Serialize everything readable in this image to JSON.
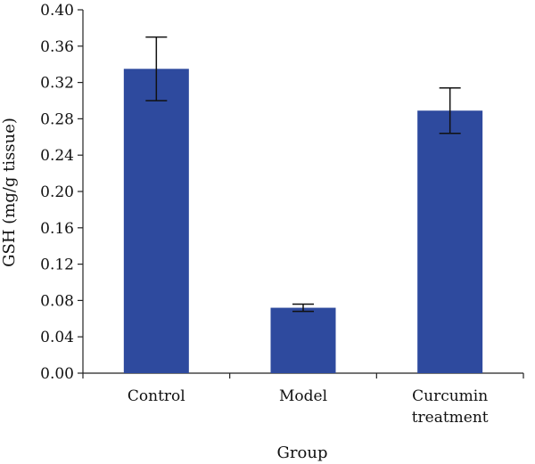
{
  "chart_data": {
    "type": "bar",
    "title": "",
    "xlabel": "Group",
    "ylabel": "GSH (mg/g tissue)",
    "ylim": [
      0,
      0.4
    ],
    "yticks": [
      "0.00",
      "0.04",
      "0.08",
      "0.12",
      "0.16",
      "0.20",
      "0.24",
      "0.28",
      "0.32",
      "0.36",
      "0.40"
    ],
    "categories": [
      [
        "Control"
      ],
      [
        "Model"
      ],
      [
        "Curcumin",
        "treatment"
      ]
    ],
    "values": [
      0.335,
      0.072,
      0.289
    ],
    "error": [
      0.035,
      0.004,
      0.025
    ],
    "bar_color": "#2e4a9e",
    "grid": false,
    "legend": "none"
  }
}
